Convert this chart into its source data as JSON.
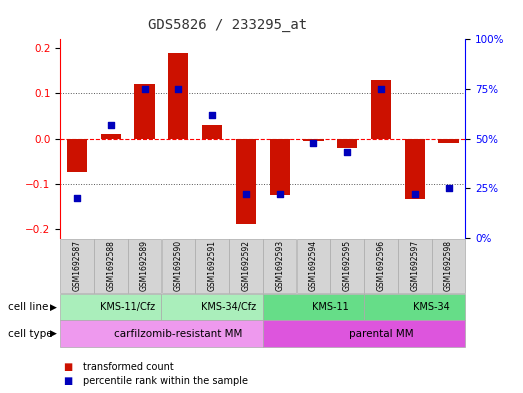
{
  "title": "GDS5826 / 233295_at",
  "samples": [
    "GSM1692587",
    "GSM1692588",
    "GSM1692589",
    "GSM1692590",
    "GSM1692591",
    "GSM1692592",
    "GSM1692593",
    "GSM1692594",
    "GSM1692595",
    "GSM1692596",
    "GSM1692597",
    "GSM1692598"
  ],
  "transformed_count": [
    -0.075,
    0.01,
    0.12,
    0.19,
    0.03,
    -0.19,
    -0.125,
    -0.005,
    -0.02,
    0.13,
    -0.135,
    -0.01
  ],
  "percentile_rank": [
    20,
    57,
    75,
    75,
    62,
    22,
    22,
    48,
    43,
    75,
    22,
    25
  ],
  "cell_line_groups": [
    {
      "label": "KMS-11/Cfz",
      "start": 0,
      "end": 3,
      "color": "#aaeebb"
    },
    {
      "label": "KMS-34/Cfz",
      "start": 3,
      "end": 6,
      "color": "#aaeebb"
    },
    {
      "label": "KMS-11",
      "start": 6,
      "end": 9,
      "color": "#66dd88"
    },
    {
      "label": "KMS-34",
      "start": 9,
      "end": 12,
      "color": "#66dd88"
    }
  ],
  "cell_type_groups": [
    {
      "label": "carfilzomib-resistant MM",
      "start": 0,
      "end": 6,
      "color": "#ee99ee"
    },
    {
      "label": "parental MM",
      "start": 6,
      "end": 12,
      "color": "#dd55dd"
    }
  ],
  "ylim": [
    -0.22,
    0.22
  ],
  "y2lim": [
    0,
    100
  ],
  "bar_color": "#cc1100",
  "dot_color": "#0000bb",
  "grid_color": "#555555",
  "title_color": "#333333"
}
